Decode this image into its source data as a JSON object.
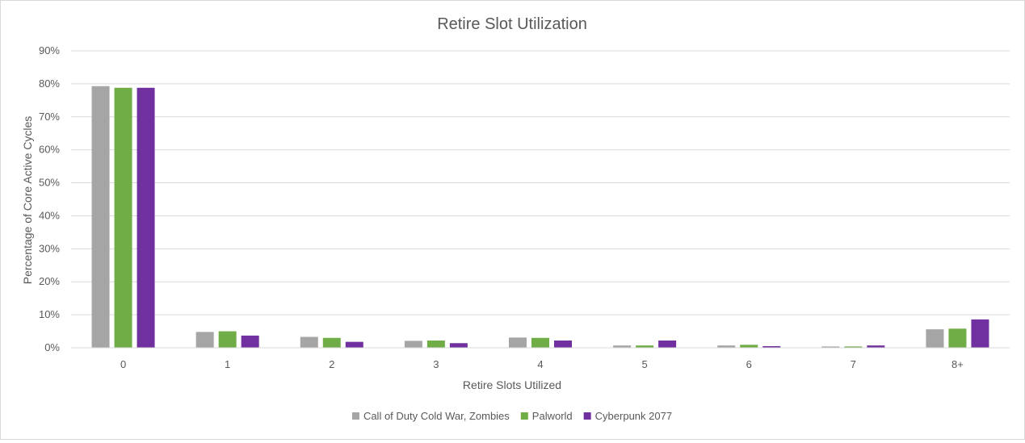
{
  "chart_data": {
    "type": "bar",
    "title": "Retire Slot Utilization",
    "xlabel": "Retire Slots Utilized",
    "ylabel": "Percentage of Core Active Cycles",
    "categories": [
      "0",
      "1",
      "2",
      "3",
      "4",
      "5",
      "6",
      "7",
      "8+"
    ],
    "ylim": [
      0,
      90
    ],
    "ytick_step": 10,
    "ytick_suffix": "%",
    "grid": true,
    "legend_position": "bottom",
    "series": [
      {
        "name": "Call of Duty Cold War, Zombies",
        "color": "#a5a5a5",
        "values": [
          79.3,
          4.8,
          3.3,
          2.1,
          3.1,
          0.7,
          0.7,
          0.4,
          5.6
        ]
      },
      {
        "name": "Palworld",
        "color": "#70ad47",
        "values": [
          78.8,
          5.0,
          3.0,
          2.2,
          3.0,
          0.7,
          0.9,
          0.4,
          5.8
        ]
      },
      {
        "name": "Cyberpunk 2077",
        "color": "#7030a0",
        "values": [
          78.8,
          3.7,
          1.8,
          1.4,
          2.2,
          2.2,
          0.5,
          0.7,
          8.6
        ]
      }
    ]
  }
}
